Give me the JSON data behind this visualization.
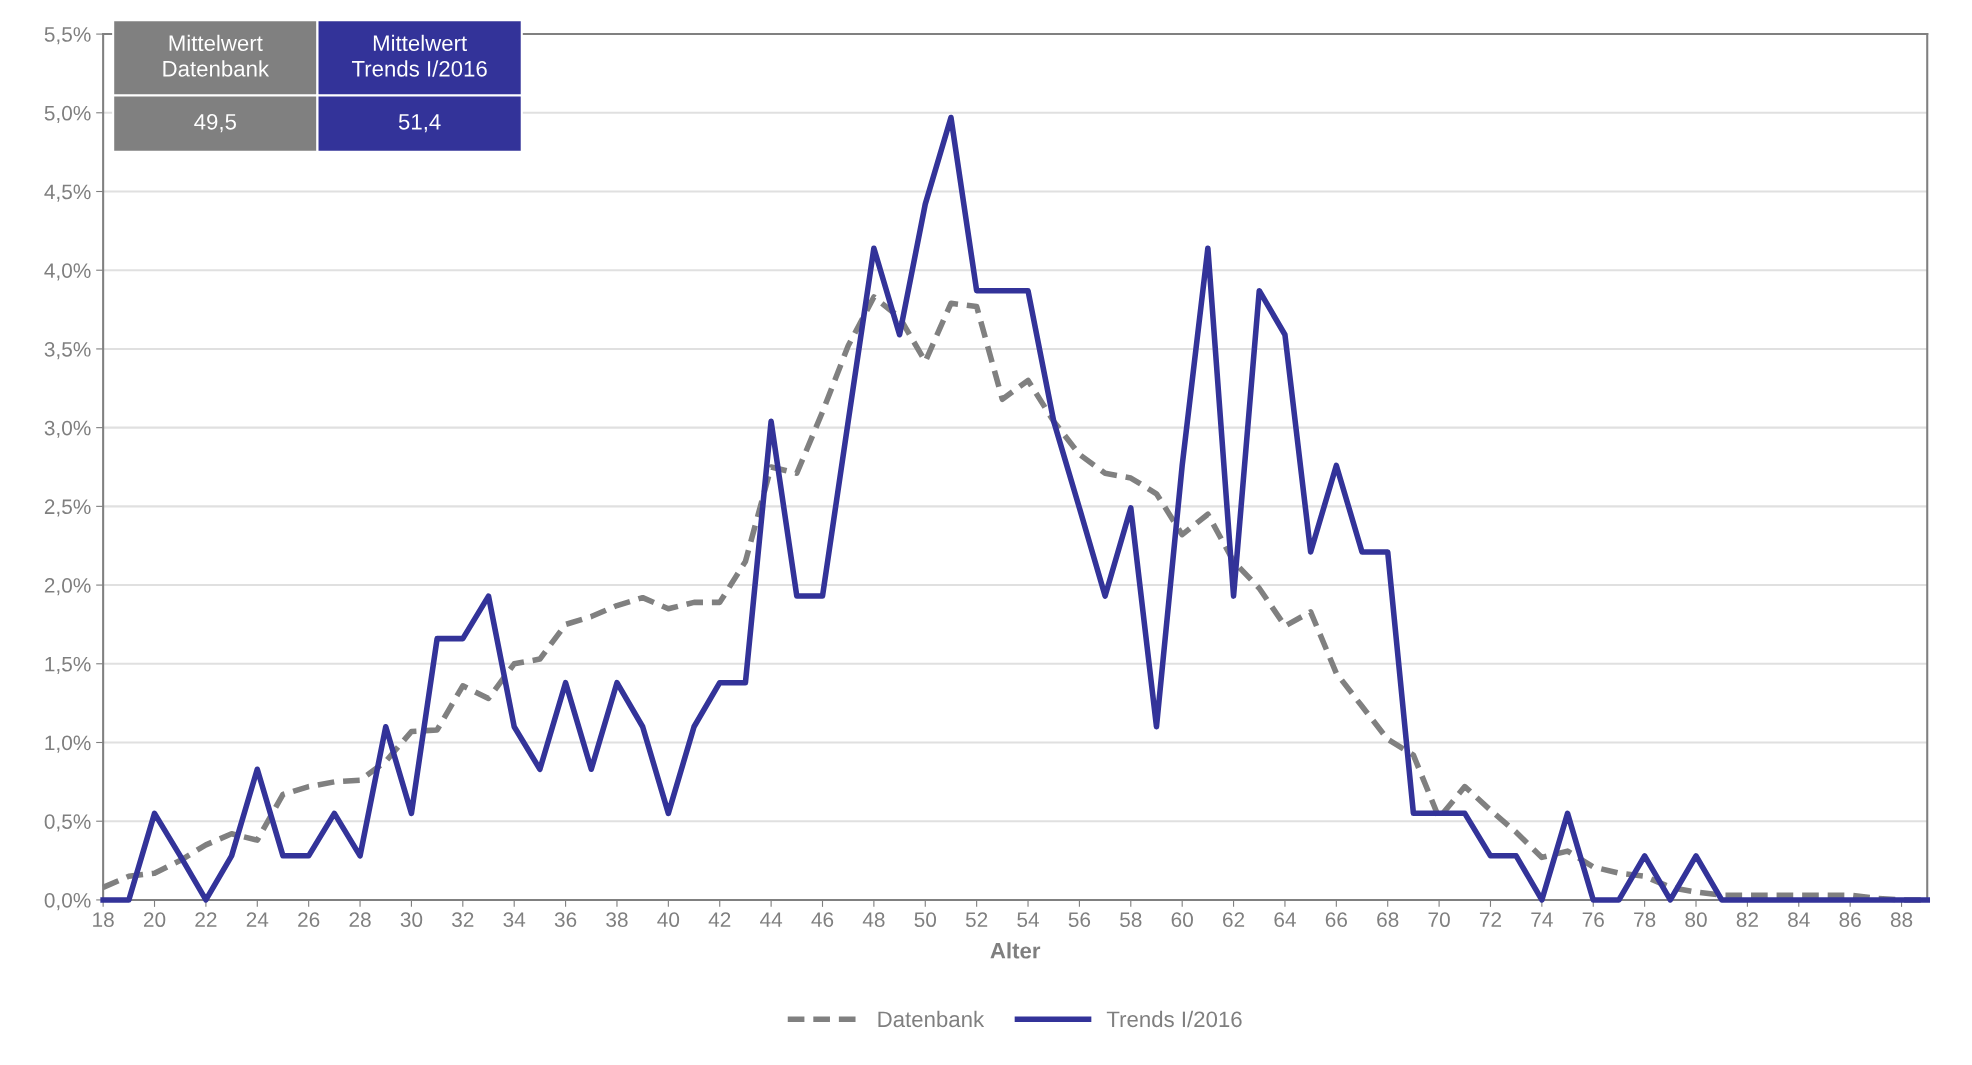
{
  "chart_data": {
    "type": "line",
    "xlabel": "Alter",
    "x": [
      18,
      19,
      20,
      21,
      22,
      23,
      24,
      25,
      26,
      27,
      28,
      29,
      30,
      31,
      32,
      33,
      34,
      35,
      36,
      37,
      38,
      39,
      40,
      41,
      42,
      43,
      44,
      45,
      46,
      47,
      48,
      49,
      50,
      51,
      52,
      53,
      54,
      55,
      56,
      57,
      58,
      59,
      60,
      61,
      62,
      63,
      64,
      65,
      66,
      67,
      68,
      69,
      70,
      71,
      72,
      73,
      74,
      75,
      76,
      77,
      78,
      79,
      80,
      81,
      82,
      83,
      84,
      85,
      86,
      87,
      88,
      89
    ],
    "series": [
      {
        "name": "Datenbank",
        "color": "#808080",
        "line_style": "dashed",
        "values": [
          0.08,
          0.15,
          0.17,
          0.25,
          0.35,
          0.42,
          0.38,
          0.67,
          0.72,
          0.75,
          0.76,
          0.88,
          1.07,
          1.08,
          1.36,
          1.28,
          1.5,
          1.53,
          1.75,
          1.8,
          1.87,
          1.92,
          1.85,
          1.89,
          1.89,
          2.15,
          2.75,
          2.71,
          3.1,
          3.52,
          3.83,
          3.7,
          3.42,
          3.79,
          3.77,
          3.18,
          3.3,
          3.04,
          2.83,
          2.71,
          2.68,
          2.58,
          2.32,
          2.45,
          2.15,
          1.98,
          1.74,
          1.83,
          1.44,
          1.23,
          1.02,
          0.92,
          0.52,
          0.72,
          0.57,
          0.43,
          0.27,
          0.31,
          0.21,
          0.17,
          0.15,
          0.08,
          0.05,
          0.03,
          0.03,
          0.03,
          0.03,
          0.03,
          0.03,
          0.01,
          0,
          0
        ]
      },
      {
        "name": "Trends I/2016",
        "color": "#333399",
        "line_style": "solid",
        "values": [
          0,
          0,
          0.55,
          0.28,
          0,
          0.28,
          0.83,
          0.28,
          0.28,
          0.55,
          0.28,
          1.1,
          0.55,
          1.66,
          1.66,
          1.93,
          1.1,
          0.83,
          1.38,
          0.83,
          1.38,
          1.1,
          0.55,
          1.1,
          1.38,
          1.38,
          3.04,
          1.93,
          1.93,
          3.04,
          4.14,
          3.59,
          4.42,
          4.97,
          3.87,
          3.87,
          3.87,
          3.04,
          2.49,
          1.93,
          2.49,
          1.1,
          2.76,
          4.14,
          1.93,
          3.87,
          3.59,
          2.21,
          2.76,
          2.21,
          2.21,
          0.55,
          0.55,
          0.55,
          0.28,
          0.28,
          0,
          0.55,
          0,
          0,
          0.28,
          0,
          0.28,
          0,
          0,
          0,
          0,
          0,
          0,
          0,
          0,
          0
        ]
      }
    ],
    "xlim": [
      18,
      89
    ],
    "xticks": [
      18,
      20,
      22,
      24,
      26,
      28,
      30,
      32,
      34,
      36,
      38,
      40,
      42,
      44,
      46,
      48,
      50,
      52,
      54,
      56,
      58,
      60,
      62,
      64,
      66,
      68,
      70,
      72,
      74,
      76,
      78,
      80,
      82,
      84,
      86,
      88
    ],
    "ylim": [
      0,
      5.5
    ],
    "yticks": [
      {
        "value": 0,
        "label": "0,0%"
      },
      {
        "value": 0.5,
        "label": "0,5%"
      },
      {
        "value": 1,
        "label": "1,0%"
      },
      {
        "value": 1.5,
        "label": "1,5%"
      },
      {
        "value": 2,
        "label": "2,0%"
      },
      {
        "value": 2.5,
        "label": "2,5%"
      },
      {
        "value": 3,
        "label": "3,0%"
      },
      {
        "value": 3.5,
        "label": "3,5%"
      },
      {
        "value": 4,
        "label": "4,0%"
      },
      {
        "value": 4.5,
        "label": "4,5%"
      },
      {
        "value": 5,
        "label": "5,0%"
      },
      {
        "value": 5.5,
        "label": "5,5%"
      }
    ],
    "grid": "y",
    "legend": "bottom",
    "marker": "none",
    "annotations": [
      "Mittelwert\nDatenbank",
      "Mittelwert\nTrends I/2016",
      "49,5",
      "51,4"
    ]
  }
}
